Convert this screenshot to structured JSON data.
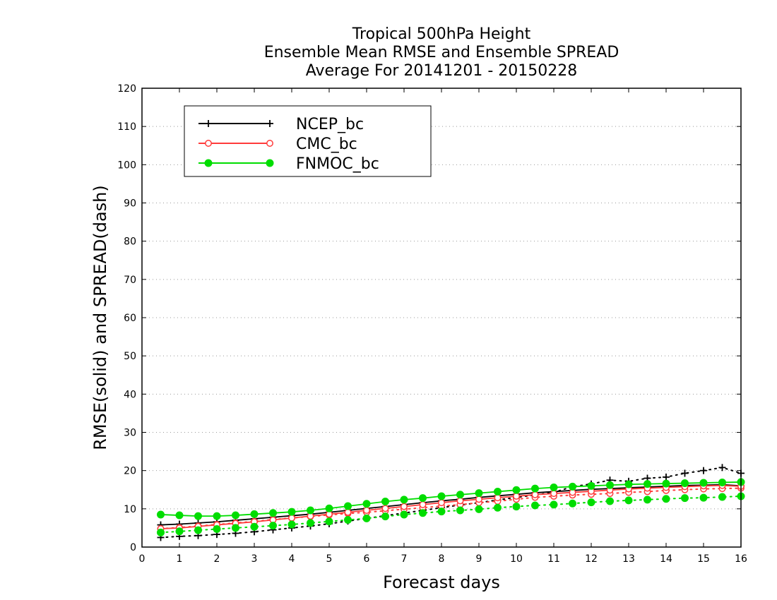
{
  "chart_data": {
    "type": "line",
    "title": [
      "Tropical 500hPa Height",
      "Ensemble Mean RMSE and Ensemble SPREAD",
      "Average For 20141201 - 20150228"
    ],
    "xlabel": "Forecast days",
    "ylabel": "RMSE(solid) and SPREAD(dash)",
    "xlim": [
      0,
      16
    ],
    "ylim": [
      0,
      120
    ],
    "xticks": [
      0,
      1,
      2,
      3,
      4,
      5,
      6,
      7,
      8,
      9,
      10,
      11,
      12,
      13,
      14,
      15,
      16
    ],
    "yticks": [
      0,
      10,
      20,
      30,
      40,
      50,
      60,
      70,
      80,
      90,
      100,
      110,
      120
    ],
    "grid": true,
    "legend_position": "top-left",
    "x": [
      0.5,
      1,
      1.5,
      2,
      2.5,
      3,
      3.5,
      4,
      4.5,
      5,
      5.5,
      6,
      6.5,
      7,
      7.5,
      8,
      8.5,
      9,
      9.5,
      10,
      10.5,
      11,
      11.5,
      12,
      12.5,
      13,
      13.5,
      14,
      14.5,
      15,
      15.5,
      16
    ],
    "series": [
      {
        "name": "NCEP_bc",
        "color": "#000000",
        "marker": "plus",
        "rmse": [
          5.8,
          6.0,
          6.3,
          6.6,
          7.0,
          7.4,
          7.8,
          8.2,
          8.6,
          9.1,
          9.6,
          10.1,
          10.6,
          11.1,
          11.6,
          12.1,
          12.5,
          13.0,
          13.4,
          13.8,
          14.2,
          14.5,
          14.8,
          15.1,
          15.3,
          15.5,
          15.7,
          15.9,
          16.1,
          16.2,
          16.3,
          16.0
        ],
        "spread": [
          2.5,
          2.8,
          3.0,
          3.3,
          3.6,
          4.0,
          4.5,
          5.0,
          5.5,
          6.1,
          6.8,
          7.5,
          8.2,
          8.9,
          9.6,
          10.3,
          11.0,
          11.6,
          12.3,
          13.0,
          13.6,
          14.3,
          15.8,
          16.5,
          17.5,
          17.2,
          18.0,
          18.3,
          19.3,
          20.0,
          20.8,
          19.3
        ]
      },
      {
        "name": "CMC_bc",
        "color": "#ff3b3b",
        "marker": "open-circle",
        "rmse": [
          4.8,
          5.0,
          5.4,
          5.8,
          6.2,
          6.6,
          7.1,
          7.6,
          8.1,
          8.6,
          9.1,
          9.6,
          10.1,
          10.6,
          11.1,
          11.6,
          12.1,
          12.5,
          12.9,
          13.3,
          13.7,
          14.0,
          14.3,
          14.6,
          14.9,
          15.2,
          15.4,
          15.6,
          15.8,
          16.0,
          16.1,
          15.9
        ],
        "spread": [
          4.8,
          5.1,
          5.5,
          5.9,
          6.3,
          6.7,
          7.2,
          7.6,
          8.0,
          8.4,
          8.8,
          9.1,
          9.5,
          9.9,
          10.3,
          10.7,
          11.1,
          11.6,
          12.0,
          12.5,
          13.0,
          13.3,
          13.6,
          13.8,
          14.0,
          14.3,
          14.5,
          14.8,
          15.0,
          15.2,
          15.3,
          15.4
        ]
      },
      {
        "name": "FNMOC_bc",
        "color": "#00dd00",
        "marker": "filled-circle",
        "rmse": [
          8.5,
          8.3,
          8.1,
          8.1,
          8.3,
          8.6,
          8.9,
          9.2,
          9.6,
          10.1,
          10.7,
          11.3,
          11.9,
          12.4,
          12.8,
          13.3,
          13.7,
          14.1,
          14.5,
          14.9,
          15.3,
          15.6,
          15.8,
          16.0,
          16.2,
          16.4,
          16.5,
          16.6,
          16.7,
          16.8,
          16.9,
          17.0
        ],
        "spread": [
          3.8,
          4.1,
          4.4,
          4.7,
          5.0,
          5.3,
          5.6,
          5.9,
          6.3,
          6.7,
          7.1,
          7.5,
          8.0,
          8.5,
          8.9,
          9.3,
          9.6,
          9.9,
          10.3,
          10.6,
          10.9,
          11.1,
          11.4,
          11.7,
          12.0,
          12.2,
          12.4,
          12.6,
          12.8,
          12.9,
          13.1,
          13.3
        ]
      }
    ]
  }
}
